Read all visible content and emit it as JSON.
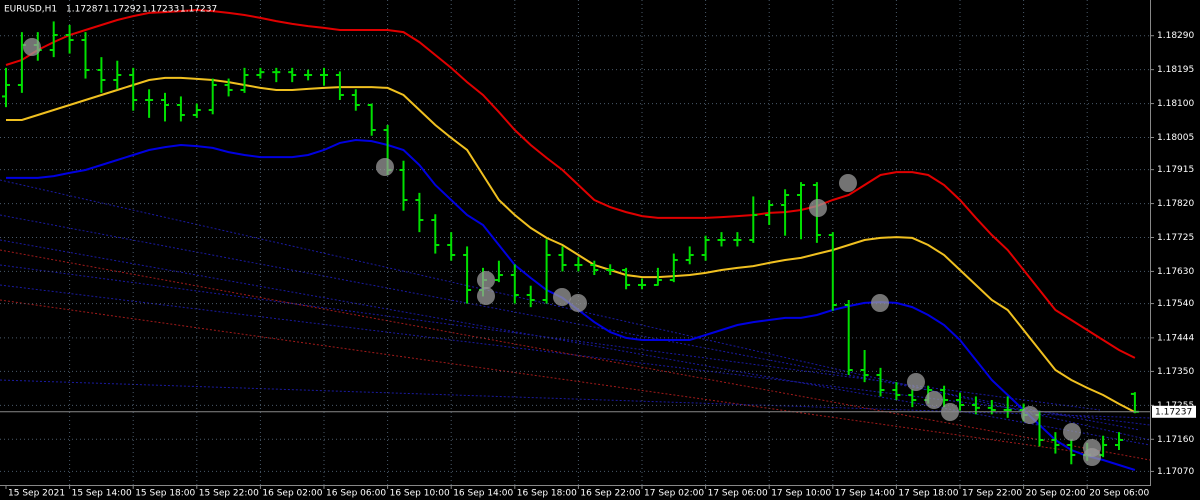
{
  "chart_data": {
    "type": "ohlc",
    "symbol": "EURUSD,H1",
    "bar_color": "#00e000",
    "categories": [
      "15 Sep 2021",
      null,
      null,
      null,
      "15 Sep 14:00",
      null,
      null,
      null,
      "15 Sep 18:00",
      null,
      null,
      null,
      "15 Sep 22:00",
      null,
      null,
      null,
      "16 Sep 02:00",
      null,
      null,
      null,
      "16 Sep 06:00",
      null,
      null,
      null,
      "16 Sep 10:00",
      null,
      null,
      null,
      "16 Sep 14:00",
      null,
      null,
      null,
      "16 Sep 18:00",
      null,
      null,
      null,
      "16 Sep 22:00",
      null,
      null,
      null,
      "17 Sep 02:00",
      null,
      null,
      null,
      "17 Sep 06:00",
      null,
      null,
      null,
      "17 Sep 10:00",
      null,
      null,
      null,
      "17 Sep 14:00",
      null,
      null,
      null,
      "17 Sep 18:00",
      null,
      null,
      null,
      "17 Sep 22:00",
      null,
      null,
      null,
      "20 Sep 02:00",
      null,
      null,
      null,
      "20 Sep 06:00",
      null,
      null,
      null
    ],
    "bars": [
      [
        1.1812,
        1.182,
        1.1809,
        1.18152
      ],
      [
        1.18152,
        1.183,
        1.1813,
        1.18264
      ],
      [
        1.18264,
        1.183,
        1.1822,
        1.1825
      ],
      [
        1.1825,
        1.1833,
        1.1823,
        1.18292
      ],
      [
        1.18292,
        1.1832,
        1.1824,
        1.18278
      ],
      [
        1.18278,
        1.183,
        1.1817,
        1.18194
      ],
      [
        1.18194,
        1.1823,
        1.1813,
        1.18166
      ],
      [
        1.18166,
        1.1822,
        1.1814,
        1.1818
      ],
      [
        1.1818,
        1.182,
        1.1808,
        1.1811
      ],
      [
        1.1811,
        1.1814,
        1.1806,
        1.1811
      ],
      [
        1.1811,
        1.1813,
        1.1805,
        1.18096
      ],
      [
        1.18096,
        1.1812,
        1.1805,
        1.18068
      ],
      [
        1.18068,
        1.181,
        1.1806,
        1.18082
      ],
      [
        1.18082,
        1.1817,
        1.1807,
        1.18152
      ],
      [
        1.18152,
        1.1817,
        1.1812,
        1.18138
      ],
      [
        1.18138,
        1.182,
        1.1813,
        1.1818
      ],
      [
        1.1818,
        1.182,
        1.1817,
        1.18188
      ],
      [
        1.18188,
        1.182,
        1.1816,
        1.18188
      ],
      [
        1.18188,
        1.182,
        1.1816,
        1.1818
      ],
      [
        1.1818,
        1.18195,
        1.18165,
        1.1818
      ],
      [
        1.1818,
        1.182,
        1.1815,
        1.1818
      ],
      [
        1.1818,
        1.1819,
        1.1811,
        1.18124
      ],
      [
        1.18124,
        1.1814,
        1.1808,
        1.18096
      ],
      [
        1.18096,
        1.181,
        1.1801,
        1.18026
      ],
      [
        1.18026,
        1.1804,
        1.179,
        1.17914
      ],
      [
        1.17914,
        1.1794,
        1.178,
        1.1783
      ],
      [
        1.1783,
        1.1785,
        1.1774,
        1.17774
      ],
      [
        1.17774,
        1.1779,
        1.1768,
        1.17704
      ],
      [
        1.17704,
        1.1774,
        1.1766,
        1.17676
      ],
      [
        1.17676,
        1.177,
        1.1754,
        1.17578
      ],
      [
        1.17578,
        1.1764,
        1.1756,
        1.17606
      ],
      [
        1.17606,
        1.1766,
        1.176,
        1.1762
      ],
      [
        1.1762,
        1.1765,
        1.1754,
        1.17564
      ],
      [
        1.17564,
        1.1759,
        1.1753,
        1.1755
      ],
      [
        1.1755,
        1.1772,
        1.1754,
        1.17676
      ],
      [
        1.17676,
        1.177,
        1.1763,
        1.17648
      ],
      [
        1.17648,
        1.1767,
        1.1763,
        1.17648
      ],
      [
        1.17648,
        1.1766,
        1.1762,
        1.17634
      ],
      [
        1.17634,
        1.1765,
        1.1762,
        1.17634
      ],
      [
        1.17634,
        1.1764,
        1.1758,
        1.17592
      ],
      [
        1.17592,
        1.1761,
        1.1758,
        1.17592
      ],
      [
        1.17592,
        1.1764,
        1.1759,
        1.17606
      ],
      [
        1.17606,
        1.1768,
        1.176,
        1.17662
      ],
      [
        1.17662,
        1.177,
        1.1765,
        1.17676
      ],
      [
        1.17676,
        1.1773,
        1.1766,
        1.17718
      ],
      [
        1.17718,
        1.1774,
        1.177,
        1.17718
      ],
      [
        1.17718,
        1.1774,
        1.177,
        1.17718
      ],
      [
        1.17718,
        1.1784,
        1.1771,
        1.17788
      ],
      [
        1.17788,
        1.1783,
        1.1776,
        1.17816
      ],
      [
        1.17816,
        1.1786,
        1.1773,
        1.17844
      ],
      [
        1.17844,
        1.1788,
        1.1772,
        1.17872
      ],
      [
        1.17872,
        1.1788,
        1.1771,
        1.17732
      ],
      [
        1.17732,
        1.1774,
        1.1752,
        1.17536
      ],
      [
        1.17536,
        1.1755,
        1.1734,
        1.17354
      ],
      [
        1.17354,
        1.1741,
        1.1732,
        1.1734
      ],
      [
        1.1734,
        1.1736,
        1.1728,
        1.17298
      ],
      [
        1.17298,
        1.1732,
        1.1727,
        1.17284
      ],
      [
        1.17284,
        1.173,
        1.1725,
        1.1727
      ],
      [
        1.1727,
        1.1731,
        1.1726,
        1.17298
      ],
      [
        1.17298,
        1.1731,
        1.1725,
        1.1727
      ],
      [
        1.1727,
        1.1729,
        1.1724,
        1.17256
      ],
      [
        1.17256,
        1.1728,
        1.1723,
        1.17248
      ],
      [
        1.17248,
        1.1727,
        1.1723,
        1.17242
      ],
      [
        1.17242,
        1.1728,
        1.1722,
        1.17242
      ],
      [
        1.17242,
        1.1726,
        1.1721,
        1.17228
      ],
      [
        1.17228,
        1.1724,
        1.1714,
        1.17158
      ],
      [
        1.17158,
        1.1718,
        1.1712,
        1.17144
      ],
      [
        1.17144,
        1.1716,
        1.1709,
        1.17116
      ],
      [
        1.17116,
        1.1715,
        1.171,
        1.17116
      ],
      [
        1.17116,
        1.1717,
        1.1711,
        1.17144
      ],
      [
        1.17144,
        1.1718,
        1.1713,
        1.17158
      ],
      [
        1.17287,
        1.17292,
        1.17233,
        1.17237
      ]
    ],
    "series": [
      {
        "color": "#e00000",
        "values": [
          1.18208,
          1.18222,
          1.1825,
          1.18272,
          1.18292,
          1.18306,
          1.1832,
          1.18334,
          1.18345,
          1.18354,
          1.18356,
          1.18359,
          1.18362,
          1.18359,
          1.18354,
          1.18348,
          1.1834,
          1.18331,
          1.18323,
          1.18317,
          1.18312,
          1.18306,
          1.18306,
          1.18306,
          1.18306,
          1.183,
          1.18272,
          1.18236,
          1.182,
          1.1816,
          1.18124,
          1.18076,
          1.18026,
          1.17984,
          1.17948,
          1.17914,
          1.17872,
          1.1783,
          1.1781,
          1.17796,
          1.17785,
          1.1778,
          1.1778,
          1.1778,
          1.1778,
          1.17782,
          1.17785,
          1.17788,
          1.17794,
          1.17796,
          1.17802,
          1.17813,
          1.1783,
          1.17844,
          1.17872,
          1.179,
          1.17908,
          1.17908,
          1.179,
          1.17872,
          1.1783,
          1.1778,
          1.17732,
          1.1769,
          1.17634,
          1.17578,
          1.17522,
          1.17494,
          1.17466,
          1.17438,
          1.1741,
          1.17388
        ]
      },
      {
        "color": "#f0c020",
        "values": [
          1.18054,
          1.18054,
          1.18068,
          1.18082,
          1.18096,
          1.1811,
          1.18124,
          1.18138,
          1.18152,
          1.18166,
          1.18172,
          1.18172,
          1.18169,
          1.18166,
          1.1816,
          1.18152,
          1.18144,
          1.18138,
          1.18138,
          1.18141,
          1.18144,
          1.18146,
          1.18146,
          1.18146,
          1.18144,
          1.18124,
          1.18082,
          1.1804,
          1.18004,
          1.1797,
          1.179,
          1.1783,
          1.17788,
          1.17752,
          1.17724,
          1.17704,
          1.17676,
          1.17648,
          1.17634,
          1.1762,
          1.17614,
          1.17614,
          1.17617,
          1.1762,
          1.17626,
          1.17634,
          1.1764,
          1.17645,
          1.17654,
          1.17662,
          1.17668,
          1.17679,
          1.1769,
          1.17704,
          1.17718,
          1.17724,
          1.17726,
          1.17724,
          1.17704,
          1.17676,
          1.17634,
          1.17592,
          1.1755,
          1.17522,
          1.17466,
          1.1741,
          1.17354,
          1.17326,
          1.17304,
          1.17284,
          1.17259,
          1.17236
        ]
      },
      {
        "color": "#0000e0",
        "values": [
          1.17892,
          1.17892,
          1.17892,
          1.17897,
          1.17906,
          1.17914,
          1.17928,
          1.17942,
          1.17956,
          1.1797,
          1.17978,
          1.17984,
          1.17981,
          1.17976,
          1.17964,
          1.17956,
          1.1795,
          1.1795,
          1.1795,
          1.17956,
          1.1797,
          1.1799,
          1.17998,
          1.17995,
          1.17984,
          1.1797,
          1.17928,
          1.17872,
          1.1783,
          1.17788,
          1.1776,
          1.17704,
          1.17648,
          1.17612,
          1.17578,
          1.17556,
          1.17522,
          1.17488,
          1.1746,
          1.17444,
          1.17438,
          1.17438,
          1.17438,
          1.17438,
          1.17452,
          1.17466,
          1.1748,
          1.17488,
          1.17494,
          1.175,
          1.175,
          1.17508,
          1.17522,
          1.17533,
          1.17542,
          1.17544,
          1.17542,
          1.1753,
          1.17508,
          1.1748,
          1.17438,
          1.17382,
          1.17326,
          1.17284,
          1.17242,
          1.172,
          1.17158,
          1.1713,
          1.17113,
          1.17102,
          1.17088,
          1.17074
        ]
      }
    ],
    "ylim": [
      1.17032,
      1.1839
    ],
    "yticks": [
      {
        "value": 1.1829,
        "label": "1.18290"
      },
      1.18195,
      {
        "value": 1.181,
        "label": "1.18100"
      },
      1.18005,
      1.17915,
      {
        "value": 1.1782,
        "label": "1.17820"
      },
      1.17725,
      {
        "value": 1.1763,
        "label": "1.17630"
      },
      {
        "value": 1.1754,
        "label": "1.17540"
      },
      1.17444,
      {
        "value": 1.1735,
        "label": "1.17350"
      },
      1.17255,
      {
        "value": 1.1716,
        "label": "1.17160"
      },
      {
        "value": 1.1707,
        "label": "1.17070"
      }
    ],
    "grid": true
  }
}
